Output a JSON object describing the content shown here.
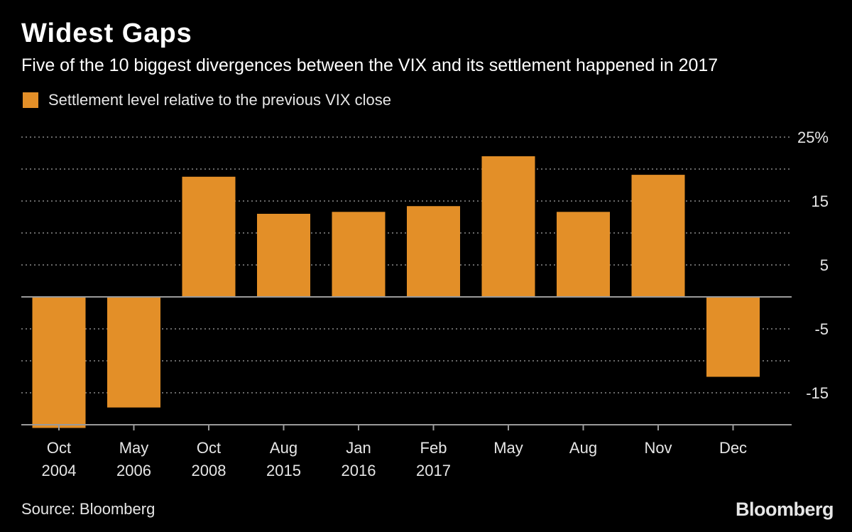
{
  "header": {
    "title": "Widest Gaps",
    "subtitle": "Five of the 10 biggest divergences between the VIX and its settlement happened in 2017"
  },
  "legend": {
    "label": "Settlement level relative to the previous VIX close",
    "color": "#e38f28"
  },
  "footer": {
    "source": "Source: Bloomberg",
    "brand": "Bloomberg"
  },
  "colors": {
    "background": "#000000",
    "bar": "#e38f28",
    "grid": "#8a8a8a",
    "axis": "#9a9a9a"
  },
  "chart_data": {
    "type": "bar",
    "title": "Widest Gaps",
    "series": [
      {
        "name": "Settlement level relative to the previous VIX close",
        "values": [
          -20.5,
          -17.3,
          18.8,
          13.0,
          13.3,
          14.2,
          22.0,
          13.3,
          19.1,
          -12.5
        ]
      }
    ],
    "categories": [
      {
        "top": "Oct",
        "bottom": "2004"
      },
      {
        "top": "May",
        "bottom": "2006"
      },
      {
        "top": "Oct",
        "bottom": "2008"
      },
      {
        "top": "Aug",
        "bottom": "2015"
      },
      {
        "top": "Jan",
        "bottom": "2016"
      },
      {
        "top": "Feb",
        "bottom": "2017"
      },
      {
        "top": "May",
        "bottom": ""
      },
      {
        "top": "Aug",
        "bottom": ""
      },
      {
        "top": "Nov",
        "bottom": ""
      },
      {
        "top": "Dec",
        "bottom": ""
      }
    ],
    "ylim": [
      -20,
      25
    ],
    "gridlines": [
      25,
      20,
      15,
      10,
      5,
      -5,
      -10,
      -15
    ],
    "ytick_labels": [
      {
        "value": 25,
        "label": "25%"
      },
      {
        "value": 15,
        "label": "15"
      },
      {
        "value": 5,
        "label": "5"
      },
      {
        "value": -5,
        "label": "-5"
      },
      {
        "value": -15,
        "label": "-15"
      }
    ],
    "xlabel": "",
    "ylabel": ""
  }
}
